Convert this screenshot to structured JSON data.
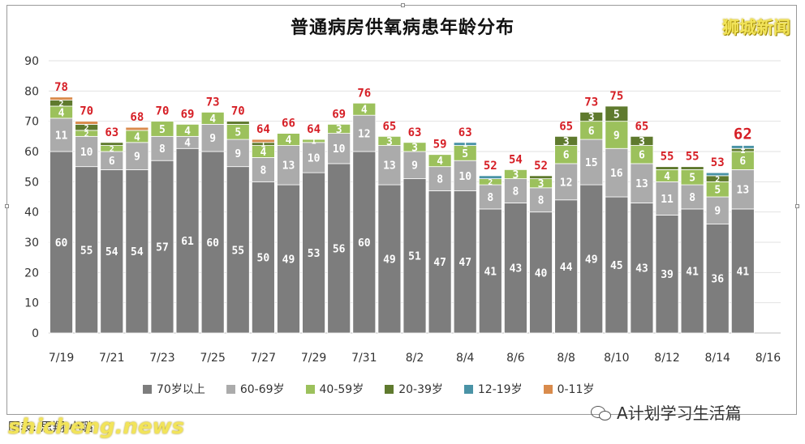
{
  "header": {
    "title": "普通病房供氧病患年龄分布",
    "brand": "狮城新闻"
  },
  "footer": {
    "credit_prefix": "图表:",
    "credit_name": "思翔·小璐",
    "watermark": "shicheng.news",
    "wechat_account": "A计划学习生活篇"
  },
  "colors": {
    "age_70_plus": "#7d7d7d",
    "age_60_69": "#ababab",
    "age_40_59": "#9cc15c",
    "age_20_39": "#5f7a2e",
    "age_12_19": "#4a93a6",
    "age_0_11": "#d98b4c",
    "total_label": "#d61f26",
    "axis_text": "#333333",
    "grid": "#e2e2e2"
  },
  "chart_data": {
    "type": "bar",
    "stacked": true,
    "title": "普通病房供氧病患年龄分布",
    "ylim": [
      0,
      90
    ],
    "yticks": [
      "0",
      "10",
      "20",
      "30",
      "40",
      "50",
      "60",
      "70",
      "80",
      "90"
    ],
    "grid": true,
    "legend_position": "bottom",
    "categories": [
      "7/19",
      "7/20",
      "7/21",
      "7/22",
      "7/23",
      "7/24",
      "7/25",
      "7/26",
      "7/27",
      "7/28",
      "7/29",
      "7/30",
      "7/31",
      "8/1",
      "8/2",
      "8/3",
      "8/4",
      "8/5",
      "8/6",
      "8/7",
      "8/8",
      "8/9",
      "8/10",
      "8/11",
      "8/12",
      "8/13",
      "8/14",
      "8/15",
      "8/16"
    ],
    "xtick_labels": [
      "7/19",
      "",
      "7/21",
      "",
      "7/23",
      "",
      "7/25",
      "",
      "7/27",
      "",
      "7/29",
      "",
      "7/31",
      "",
      "8/2",
      "",
      "8/4",
      "",
      "8/6",
      "",
      "8/8",
      "",
      "8/10",
      "",
      "8/12",
      "",
      "8/14",
      "",
      "8/16"
    ],
    "series": [
      {
        "name": "70岁以上",
        "color_key": "age_70_plus",
        "values": [
          60,
          55,
          54,
          54,
          57,
          61,
          60,
          55,
          50,
          49,
          53,
          56,
          60,
          49,
          51,
          47,
          47,
          41,
          43,
          40,
          44,
          49,
          45,
          43,
          39,
          41,
          36,
          41,
          null
        ],
        "labels": [
          "60",
          "55",
          "54",
          "54",
          "57",
          "61",
          "60",
          "55",
          "50",
          "49",
          "53",
          "56",
          "60",
          "49",
          "51",
          "47",
          "47",
          "41",
          "43",
          "40",
          "44",
          "49",
          "45",
          "43",
          "39",
          "41",
          "36",
          "41",
          ""
        ]
      },
      {
        "name": "60-69岁",
        "color_key": "age_60_69",
        "values": [
          11,
          10,
          6,
          9,
          8,
          4,
          9,
          9,
          8,
          13,
          10,
          10,
          12,
          13,
          9,
          8,
          10,
          8,
          8,
          8,
          12,
          15,
          16,
          13,
          11,
          8,
          9,
          13,
          null
        ],
        "labels": [
          "11",
          "10",
          "6",
          "9",
          "8",
          "4",
          "9",
          "9",
          "8",
          "13",
          "10",
          "10",
          "12",
          "13",
          "9",
          "8",
          "10",
          "8",
          "8",
          "8",
          "12",
          "15",
          "16",
          "13",
          "11",
          "8",
          "9",
          "13",
          ""
        ]
      },
      {
        "name": "40-59岁",
        "color_key": "age_40_59",
        "values": [
          4,
          2,
          2,
          4,
          5,
          4,
          4,
          5,
          4,
          4,
          1,
          3,
          4,
          3,
          3,
          4,
          5,
          2,
          3,
          3,
          6,
          6,
          9,
          6,
          4,
          5,
          5,
          6,
          null
        ],
        "labels": [
          "4",
          "2",
          "2",
          "4",
          "5",
          "4",
          "4",
          "5",
          "4",
          "4",
          "1",
          "3",
          "4",
          "3",
          "3",
          "4",
          "5",
          "2",
          "3",
          "3",
          "6",
          "6",
          "9",
          "6",
          "4",
          "5",
          "5",
          "6",
          ""
        ]
      },
      {
        "name": "20-39岁",
        "color_key": "age_20_39",
        "values": [
          2,
          2,
          1,
          0,
          0,
          0,
          0,
          1,
          1,
          0,
          0,
          0,
          0,
          0,
          0,
          0,
          0,
          0,
          0,
          1,
          3,
          3,
          5,
          3,
          1,
          1,
          2,
          1,
          null
        ],
        "labels": [
          "2",
          "2",
          "",
          "",
          "",
          "",
          "",
          "",
          "1",
          "",
          "",
          "",
          "",
          "",
          "",
          "",
          "",
          "",
          "",
          "",
          "3",
          "3",
          "5",
          "3",
          "",
          "",
          "2",
          "1",
          ""
        ]
      },
      {
        "name": "12-19岁",
        "color_key": "age_12_19",
        "values": [
          0,
          0,
          0,
          0,
          0,
          0,
          0,
          0,
          0,
          0,
          0,
          0,
          0,
          0,
          0,
          0,
          1,
          1,
          0,
          0,
          0,
          0,
          0,
          0,
          0,
          0,
          1,
          1,
          null
        ],
        "labels": [
          "",
          "",
          "",
          "",
          "",
          "",
          "",
          "",
          "",
          "",
          "",
          "",
          "",
          "",
          "",
          "",
          "1",
          "",
          "",
          "",
          "",
          "",
          "",
          "",
          "",
          "",
          "",
          "1",
          ""
        ]
      },
      {
        "name": "0-11岁",
        "color_key": "age_0_11",
        "values": [
          1,
          1,
          0,
          1,
          0,
          0,
          0,
          0,
          1,
          0,
          0,
          0,
          0,
          0,
          0,
          0,
          0,
          0,
          0,
          0,
          0,
          0,
          0,
          0,
          0,
          0,
          0,
          0,
          null
        ],
        "labels": [
          "",
          "",
          "",
          "",
          "",
          "",
          "",
          "",
          "",
          "",
          "",
          "",
          "",
          "",
          "",
          "",
          "",
          "",
          "",
          "",
          "",
          "",
          "",
          "",
          "",
          "",
          "",
          "",
          ""
        ]
      }
    ],
    "totals": [
      78,
      70,
      63,
      68,
      70,
      69,
      73,
      70,
      64,
      66,
      64,
      69,
      76,
      65,
      63,
      59,
      63,
      52,
      54,
      52,
      65,
      73,
      75,
      65,
      55,
      55,
      53,
      62,
      null
    ],
    "total_labels": [
      "78",
      "70",
      "63",
      "68",
      "70",
      "69",
      "73",
      "70",
      "64",
      "66",
      "64",
      "69",
      "76",
      "65",
      "63",
      "59",
      "63",
      "52",
      "54",
      "52",
      "65",
      "73",
      "75",
      "65",
      "55",
      "55",
      "53",
      "62",
      ""
    ],
    "highlight_index": 27
  }
}
